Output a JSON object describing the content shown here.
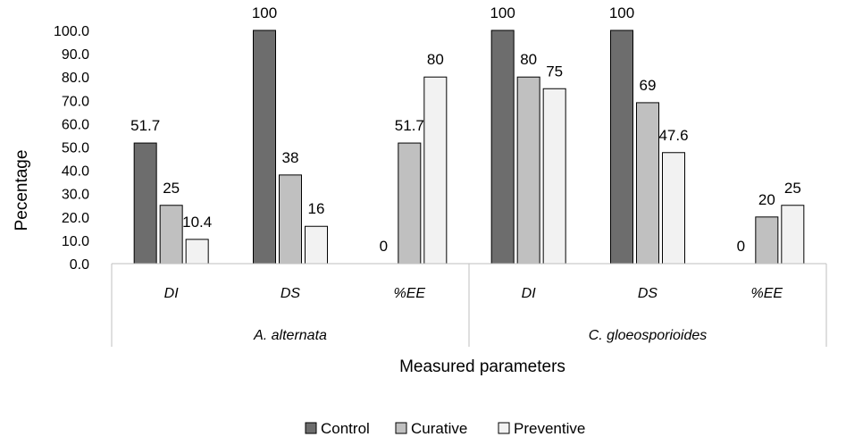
{
  "chart_data": {
    "type": "bar",
    "title": "",
    "xlabel": "Measured parameters",
    "ylabel": "Pecentage",
    "ylim": [
      0,
      100
    ],
    "ytick_step": 10,
    "ytick_labels": [
      "0.0",
      "10.0",
      "20.0",
      "30.0",
      "40.0",
      "50.0",
      "60.0",
      "70.0",
      "80.0",
      "90.0",
      "100.0"
    ],
    "groups": [
      {
        "name": "A. alternata",
        "categories": [
          "DI",
          "DS",
          "%EE"
        ]
      },
      {
        "name": "C. gloeosporioides",
        "categories": [
          "DI",
          "DS",
          "%EE"
        ]
      }
    ],
    "series": [
      {
        "name": "Control",
        "color": "#6d6d6d",
        "values": [
          51.7,
          100,
          0,
          100,
          100,
          0
        ],
        "labels": [
          "51.7",
          "100",
          "0",
          "100",
          "100",
          "0"
        ]
      },
      {
        "name": "Curative",
        "color": "#c0c0c0",
        "values": [
          25,
          38,
          51.7,
          80,
          69,
          20
        ],
        "labels": [
          "25",
          "38",
          "51.7",
          "80",
          "69",
          "20"
        ]
      },
      {
        "name": "Preventive",
        "color": "#f2f2f2",
        "values": [
          10.4,
          16,
          80,
          75,
          47.6,
          25
        ],
        "labels": [
          "10.4",
          "16",
          "80",
          "75",
          "47.6",
          "25"
        ]
      }
    ],
    "legend_position": "bottom",
    "grid": false
  }
}
